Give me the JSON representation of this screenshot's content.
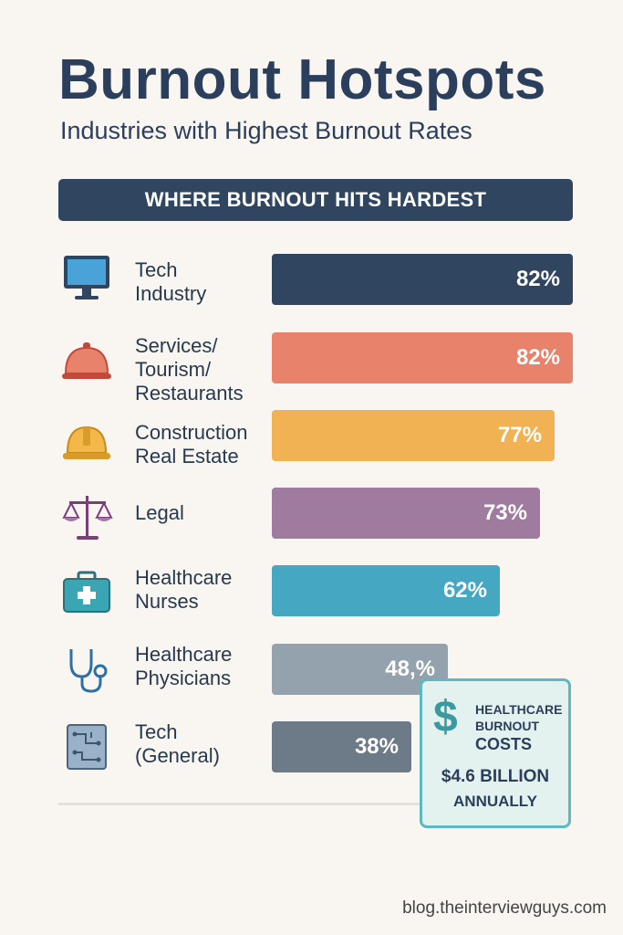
{
  "header": {
    "title": "Burnout Hotspots",
    "subtitle": "Industries with Highest Burnout Rates",
    "banner": "WHERE BURNOUT HITS HARDEST"
  },
  "chart_data": {
    "type": "bar",
    "orientation": "horizontal",
    "xlim": [
      0,
      100
    ],
    "categories": [
      [
        "Tech",
        "Industry"
      ],
      [
        "Services/",
        "Tourism/",
        "Restaurants"
      ],
      [
        "Construction",
        "Real Estate"
      ],
      [
        "Legal"
      ],
      [
        "Healthcare",
        "Nurses"
      ],
      [
        "Healthcare",
        "Physicians"
      ],
      [
        "Tech",
        "(General)"
      ]
    ],
    "values": [
      82,
      82,
      77,
      73,
      62,
      48,
      38
    ],
    "value_labels": [
      "82%",
      "82%",
      "77%",
      "73%",
      "62%",
      "48,%",
      "38%"
    ],
    "colors": [
      "#2f4560",
      "#e8826b",
      "#f0b253",
      "#a07ba0",
      "#45a7c2",
      "#94a2ad",
      "#6c7b87"
    ],
    "icons": [
      "monitor-icon",
      "cloche-icon",
      "hard-hat-icon",
      "scales-icon",
      "medical-kit-icon",
      "stethoscope-icon",
      "circuit-board-icon"
    ]
  },
  "callout": {
    "symbol": "$",
    "line1": "HEALTHCARE",
    "line2": "BURNOUT",
    "line3": "COSTS",
    "amount": "$4.6 BILLION",
    "period": "ANNUALLY"
  },
  "footer": {
    "source": "blog.theinterviewguys.com"
  }
}
